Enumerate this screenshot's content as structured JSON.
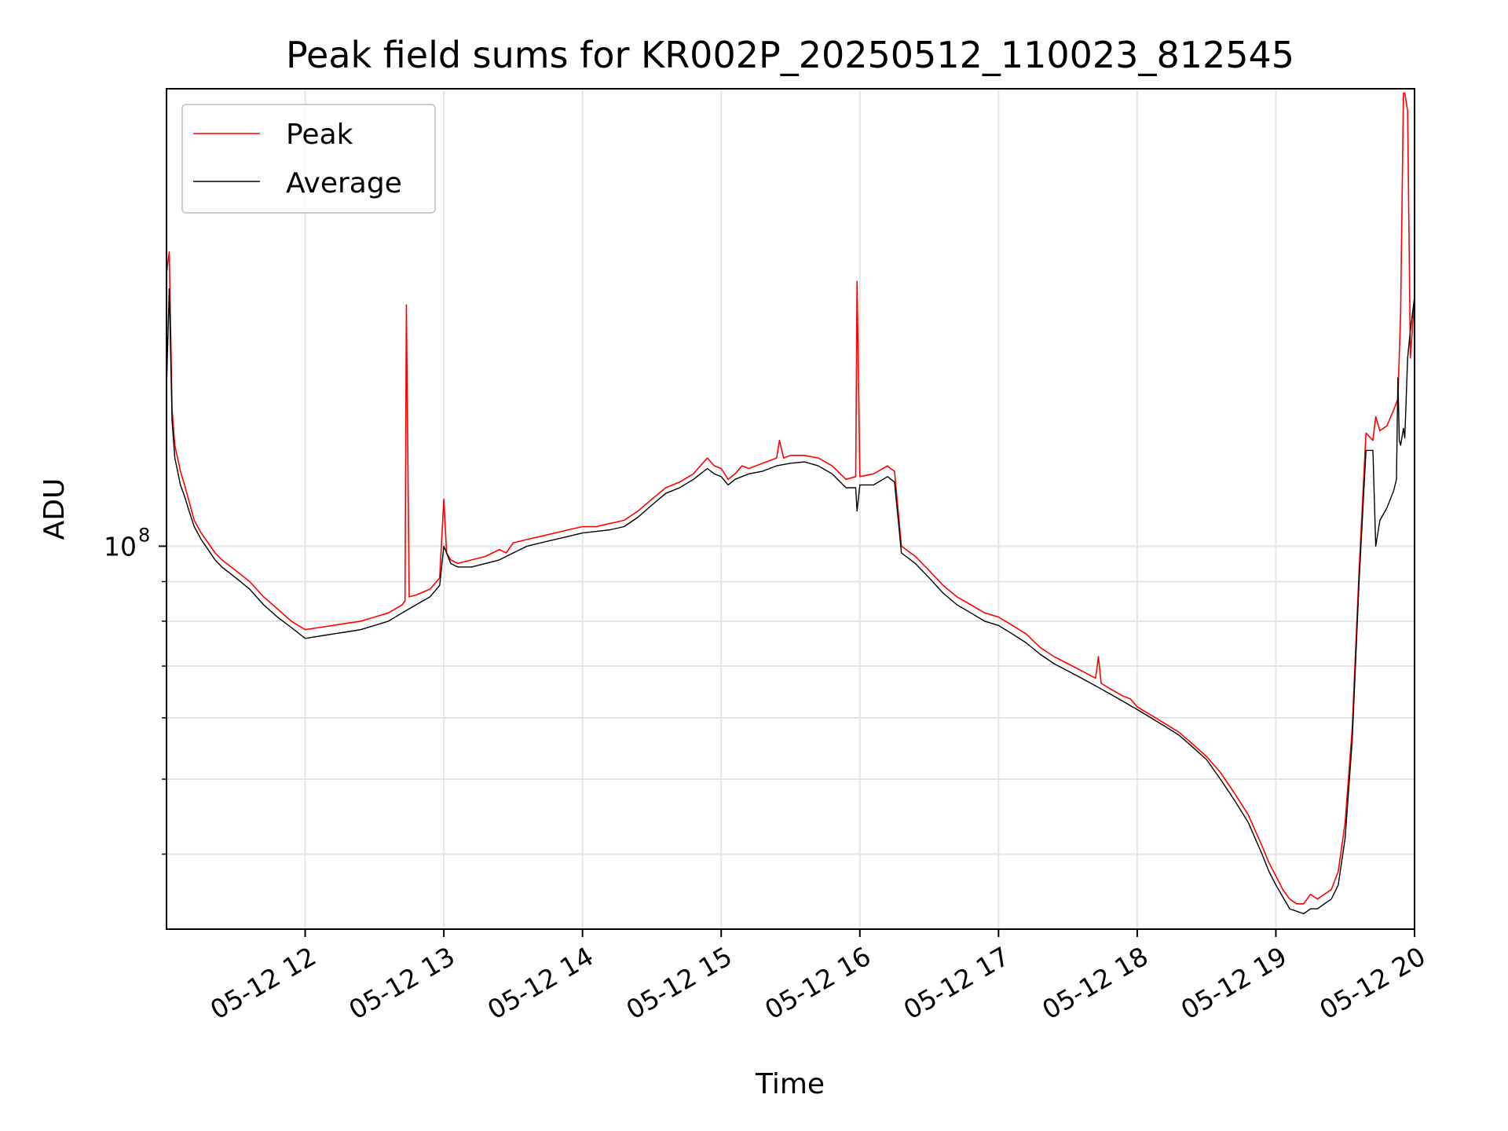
{
  "chart_data": {
    "type": "line",
    "title": "Peak field sums for KR002P_20250512_110023_812545",
    "xlabel": "Time",
    "ylabel": "ADU",
    "yscale": "log",
    "xlim": [
      "2025-05-12T11:00",
      "2025-05-12T20:00"
    ],
    "ylim": [
      32000000,
      390000000
    ],
    "grid": true,
    "legend_position": "top-left",
    "x_ticks": [
      "05-12 12",
      "05-12 13",
      "05-12 14",
      "05-12 15",
      "05-12 16",
      "05-12 17",
      "05-12 18",
      "05-12 19",
      "05-12 20"
    ],
    "y_major_ticks": [
      {
        "value": 100000000,
        "label": "10",
        "exp": "8"
      }
    ],
    "y_minor_ticks": [
      40000000,
      50000000,
      60000000,
      70000000,
      80000000,
      90000000
    ],
    "x_format": "hour of 2025-05-12",
    "series": [
      {
        "name": "Peak",
        "color": "#ff0000",
        "x": [
          11.0,
          11.02,
          11.04,
          11.06,
          11.08,
          11.1,
          11.13,
          11.17,
          11.2,
          11.25,
          11.3,
          11.35,
          11.4,
          11.5,
          11.6,
          11.7,
          11.8,
          11.9,
          12.0,
          12.1,
          12.2,
          12.3,
          12.4,
          12.5,
          12.6,
          12.7,
          12.72,
          12.73,
          12.75,
          12.8,
          12.9,
          12.97,
          13.0,
          13.02,
          13.05,
          13.1,
          13.2,
          13.3,
          13.4,
          13.45,
          13.5,
          13.6,
          13.7,
          13.8,
          13.9,
          14.0,
          14.1,
          14.2,
          14.3,
          14.4,
          14.5,
          14.6,
          14.7,
          14.8,
          14.85,
          14.9,
          14.95,
          15.0,
          15.05,
          15.1,
          15.15,
          15.2,
          15.3,
          15.4,
          15.42,
          15.45,
          15.5,
          15.6,
          15.7,
          15.8,
          15.9,
          15.97,
          15.98,
          16.0,
          16.1,
          16.2,
          16.22,
          16.25,
          16.3,
          16.4,
          16.5,
          16.6,
          16.7,
          16.8,
          16.9,
          17.0,
          17.1,
          17.2,
          17.3,
          17.4,
          17.5,
          17.6,
          17.7,
          17.72,
          17.74,
          17.8,
          17.9,
          17.95,
          18.0,
          18.1,
          18.2,
          18.3,
          18.4,
          18.5,
          18.6,
          18.7,
          18.8,
          18.9,
          18.95,
          19.0,
          19.05,
          19.1,
          19.15,
          19.2,
          19.25,
          19.3,
          19.35,
          19.4,
          19.45,
          19.5,
          19.55,
          19.6,
          19.65,
          19.7,
          19.72,
          19.75,
          19.8,
          19.85,
          19.88,
          19.9,
          19.92,
          19.93,
          19.95,
          19.97,
          20.0
        ],
        "y": [
          225000000,
          240000000,
          150000000,
          135000000,
          130000000,
          125000000,
          120000000,
          113000000,
          108000000,
          104000000,
          101000000,
          98000000,
          96000000,
          93000000,
          90000000,
          86000000,
          83000000,
          80000000,
          78000000,
          78500000,
          79000000,
          79500000,
          80000000,
          81000000,
          82000000,
          84000000,
          85000000,
          205000000,
          86000000,
          86500000,
          88000000,
          91000000,
          115000000,
          98000000,
          96000000,
          95000000,
          96000000,
          97000000,
          99000000,
          98000000,
          101000000,
          102000000,
          103000000,
          104000000,
          105000000,
          106000000,
          106000000,
          107000000,
          108000000,
          111000000,
          115000000,
          119000000,
          121000000,
          124000000,
          127000000,
          130000000,
          127000000,
          126000000,
          122000000,
          124000000,
          127000000,
          126000000,
          128000000,
          130000000,
          137000000,
          130000000,
          131000000,
          131000000,
          130000000,
          127000000,
          122000000,
          123000000,
          220000000,
          123000000,
          124000000,
          127000000,
          126000000,
          125000000,
          100000000,
          97000000,
          93000000,
          89000000,
          86000000,
          84000000,
          82000000,
          81000000,
          79000000,
          77000000,
          74000000,
          72000000,
          70500000,
          69000000,
          67500000,
          72000000,
          66500000,
          65500000,
          64000000,
          63500000,
          62000000,
          60500000,
          59000000,
          57500000,
          55500000,
          53500000,
          51000000,
          48000000,
          45000000,
          41000000,
          39000000,
          37500000,
          36000000,
          35000000,
          34500000,
          34500000,
          35500000,
          35000000,
          35500000,
          36000000,
          38000000,
          44000000,
          58000000,
          93000000,
          140000000,
          137000000,
          147000000,
          141000000,
          143000000,
          150000000,
          155000000,
          200000000,
          385000000,
          385000000,
          365000000,
          175000000,
          210000000
        ]
      },
      {
        "name": "Average",
        "color": "#000000",
        "x": [
          11.0,
          11.02,
          11.04,
          11.06,
          11.08,
          11.1,
          11.13,
          11.17,
          11.2,
          11.25,
          11.3,
          11.35,
          11.4,
          11.5,
          11.6,
          11.7,
          11.8,
          11.9,
          12.0,
          12.1,
          12.2,
          12.3,
          12.4,
          12.5,
          12.6,
          12.7,
          12.75,
          12.8,
          12.9,
          12.97,
          13.0,
          13.05,
          13.1,
          13.2,
          13.3,
          13.4,
          13.5,
          13.6,
          13.7,
          13.8,
          13.9,
          14.0,
          14.1,
          14.2,
          14.3,
          14.4,
          14.5,
          14.6,
          14.7,
          14.8,
          14.9,
          14.95,
          15.0,
          15.05,
          15.1,
          15.2,
          15.3,
          15.4,
          15.5,
          15.6,
          15.7,
          15.8,
          15.9,
          15.97,
          15.98,
          16.0,
          16.1,
          16.2,
          16.25,
          16.3,
          16.4,
          16.5,
          16.6,
          16.7,
          16.8,
          16.9,
          17.0,
          17.1,
          17.2,
          17.3,
          17.4,
          17.5,
          17.6,
          17.7,
          17.8,
          17.9,
          18.0,
          18.1,
          18.2,
          18.3,
          18.4,
          18.5,
          18.6,
          18.7,
          18.8,
          18.9,
          18.95,
          19.0,
          19.1,
          19.2,
          19.25,
          19.3,
          19.35,
          19.4,
          19.45,
          19.5,
          19.55,
          19.6,
          19.65,
          19.7,
          19.72,
          19.75,
          19.8,
          19.85,
          19.87,
          19.88,
          19.89,
          19.9,
          19.92,
          19.93,
          19.95,
          19.97,
          20.0
        ],
        "y": [
          160000000,
          215000000,
          145000000,
          130000000,
          125000000,
          120000000,
          116000000,
          110000000,
          106000000,
          102000000,
          99000000,
          96000000,
          94000000,
          91000000,
          88000000,
          84000000,
          81000000,
          78500000,
          76000000,
          76500000,
          77000000,
          77500000,
          78000000,
          79000000,
          80000000,
          82000000,
          83000000,
          84000000,
          86000000,
          89000000,
          100000000,
          95000000,
          94000000,
          94000000,
          95000000,
          96000000,
          98000000,
          100000000,
          101000000,
          102000000,
          103000000,
          104000000,
          104500000,
          105000000,
          106000000,
          109000000,
          113000000,
          117000000,
          119000000,
          122000000,
          126000000,
          124000000,
          123000000,
          120000000,
          122000000,
          124000000,
          125000000,
          127000000,
          128000000,
          128500000,
          127000000,
          124000000,
          119000000,
          119000000,
          111000000,
          120000000,
          120000000,
          123000000,
          121000000,
          98000000,
          95000000,
          91000000,
          87000000,
          84000000,
          82000000,
          80000000,
          79000000,
          77000000,
          75000000,
          72500000,
          70500000,
          69000000,
          67500000,
          66000000,
          64500000,
          63000000,
          61500000,
          60000000,
          58500000,
          57000000,
          55000000,
          53000000,
          50000000,
          47000000,
          44000000,
          40000000,
          38000000,
          36500000,
          34000000,
          33500000,
          34000000,
          34000000,
          34500000,
          35000000,
          36500000,
          42000000,
          56000000,
          90000000,
          133000000,
          133000000,
          100000000,
          108000000,
          112000000,
          118000000,
          122000000,
          165000000,
          137000000,
          135000000,
          142000000,
          138000000,
          175000000,
          190000000,
          210000000
        ]
      }
    ]
  }
}
